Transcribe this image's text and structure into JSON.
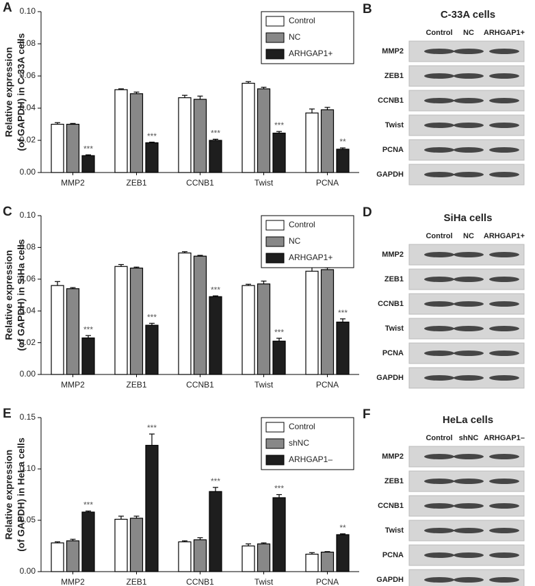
{
  "chart_data": [
    {
      "type": "bar",
      "letter": "A",
      "ylabel": [
        "Relative expression",
        "(of GAPDH) in C-33A cells"
      ],
      "categories": [
        "MMP2",
        "ZEB1",
        "CCNB1",
        "Twist",
        "PCNA"
      ],
      "series": [
        {
          "name": "Control",
          "color": "#ffffff",
          "values": [
            0.03,
            0.0515,
            0.0465,
            0.0555,
            0.037
          ],
          "errors": [
            0.001,
            0.0005,
            0.0015,
            0.001,
            0.0025
          ]
        },
        {
          "name": "NC",
          "color": "#888888",
          "values": [
            0.03,
            0.049,
            0.0455,
            0.052,
            0.039
          ],
          "errors": [
            0.0005,
            0.001,
            0.002,
            0.001,
            0.0015
          ]
        },
        {
          "name": "ARHGAP1+",
          "color": "#1e1e1e",
          "values": [
            0.0105,
            0.0185,
            0.02,
            0.0245,
            0.0145
          ],
          "errors": [
            0.0005,
            0.0004,
            0.0007,
            0.001,
            0.0008
          ]
        }
      ],
      "significance": [
        "***",
        "***",
        "***",
        "***",
        "**"
      ],
      "ylim": [
        0,
        0.1
      ],
      "yticks": [
        {
          "value": 0,
          "label": "0.00"
        },
        {
          "value": 0.02,
          "label": "0.02"
        },
        {
          "value": 0.04,
          "label": "0.04"
        },
        {
          "value": 0.06,
          "label": "0.06"
        },
        {
          "value": 0.08,
          "label": "0.08"
        },
        {
          "value": 0.1,
          "label": "0.10"
        }
      ],
      "legend": "upper right"
    },
    {
      "type": "bar",
      "letter": "C",
      "ylabel": [
        "Relative expression",
        "(of GAPDH) in SiHa cells"
      ],
      "categories": [
        "MMP2",
        "ZEB1",
        "CCNB1",
        "Twist",
        "PCNA"
      ],
      "series": [
        {
          "name": "Control",
          "color": "#ffffff",
          "values": [
            0.056,
            0.068,
            0.0765,
            0.056,
            0.065
          ],
          "errors": [
            0.0025,
            0.0012,
            0.0008,
            0.0008,
            0.0025
          ]
        },
        {
          "name": "NC",
          "color": "#888888",
          "values": [
            0.054,
            0.067,
            0.0745,
            0.057,
            0.066
          ],
          "errors": [
            0.0007,
            0.0006,
            0.0005,
            0.0018,
            0.0012
          ]
        },
        {
          "name": "ARHGAP1+",
          "color": "#1e1e1e",
          "values": [
            0.023,
            0.031,
            0.049,
            0.021,
            0.033
          ],
          "errors": [
            0.0015,
            0.0012,
            0.0005,
            0.0018,
            0.002
          ]
        }
      ],
      "significance": [
        "***",
        "***",
        "***",
        "***",
        "***"
      ],
      "ylim": [
        0,
        0.1
      ],
      "yticks": [
        {
          "value": 0,
          "label": "0.00"
        },
        {
          "value": 0.02,
          "label": "0.02"
        },
        {
          "value": 0.04,
          "label": "0.04"
        },
        {
          "value": 0.06,
          "label": "0.06"
        },
        {
          "value": 0.08,
          "label": "0.08"
        },
        {
          "value": 0.1,
          "label": "0.10"
        }
      ],
      "legend": "upper right"
    },
    {
      "type": "bar",
      "letter": "E",
      "ylabel": [
        "Relative expression",
        "(of GAPDH) in HeLa cells"
      ],
      "categories": [
        "MMP2",
        "ZEB1",
        "CCNB1",
        "Twist",
        "PCNA"
      ],
      "series": [
        {
          "name": "Control",
          "color": "#ffffff",
          "values": [
            0.028,
            0.051,
            0.029,
            0.025,
            0.017
          ],
          "errors": [
            0.001,
            0.003,
            0.001,
            0.002,
            0.0015
          ]
        },
        {
          "name": "shNC",
          "color": "#888888",
          "values": [
            0.03,
            0.052,
            0.031,
            0.027,
            0.019
          ],
          "errors": [
            0.0015,
            0.002,
            0.002,
            0.001,
            0.0005
          ]
        },
        {
          "name": "ARHGAP1–",
          "color": "#1e1e1e",
          "values": [
            0.058,
            0.123,
            0.078,
            0.072,
            0.036
          ],
          "errors": [
            0.001,
            0.011,
            0.004,
            0.003,
            0.0008
          ]
        }
      ],
      "significance": [
        "***",
        "***",
        "***",
        "***",
        "**"
      ],
      "ylim": [
        0,
        0.15
      ],
      "yticks": [
        {
          "value": 0,
          "label": "0.00"
        },
        {
          "value": 0.05,
          "label": "0.05"
        },
        {
          "value": 0.1,
          "label": "0.10"
        },
        {
          "value": 0.15,
          "label": "0.15"
        }
      ],
      "legend": "upper right"
    }
  ],
  "blots": [
    {
      "letter": "B",
      "title": "C-33A cells",
      "lanes": [
        "Control",
        "NC",
        "ARHGAP1+"
      ],
      "proteins": [
        "MMP2",
        "ZEB1",
        "CCNB1",
        "Twist",
        "PCNA",
        "GAPDH"
      ]
    },
    {
      "letter": "D",
      "title": "SiHa cells",
      "lanes": [
        "Control",
        "NC",
        "ARHGAP1+"
      ],
      "proteins": [
        "MMP2",
        "ZEB1",
        "CCNB1",
        "Twist",
        "PCNA",
        "GAPDH"
      ]
    },
    {
      "letter": "F",
      "title": "HeLa cells",
      "lanes": [
        "Control",
        "shNC",
        "ARHGAP1–"
      ],
      "proteins": [
        "MMP2",
        "ZEB1",
        "CCNB1",
        "Twist",
        "PCNA",
        "GAPDH"
      ]
    }
  ]
}
